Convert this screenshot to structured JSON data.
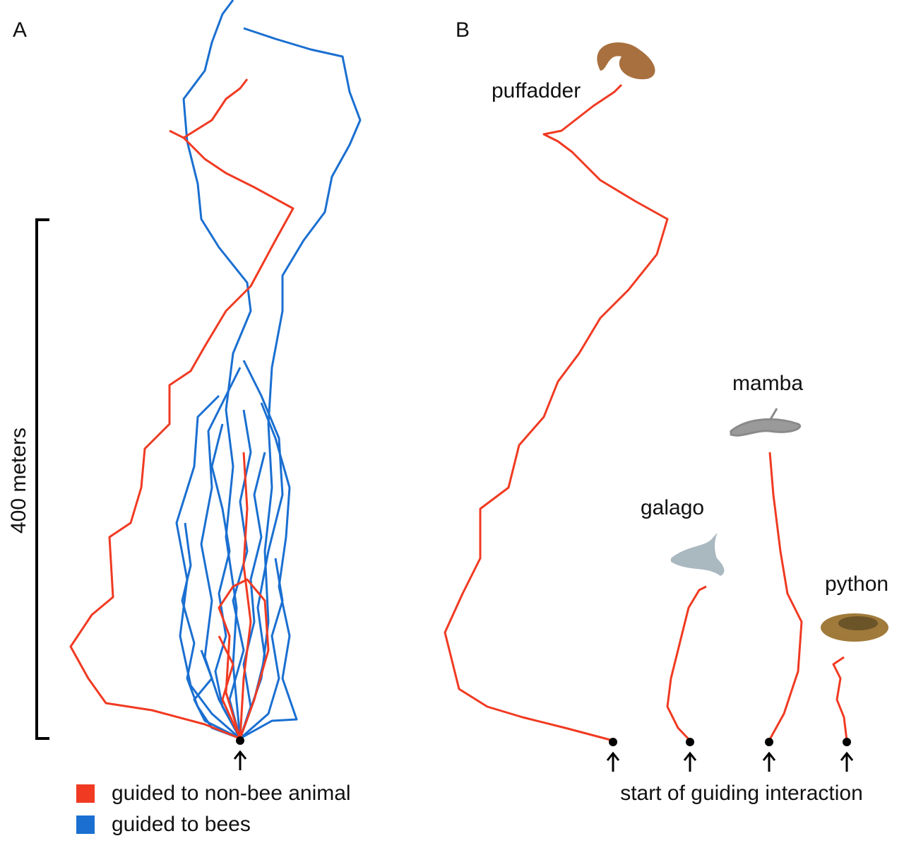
{
  "panels": [
    {
      "label": "A",
      "scale_label": "400 meters",
      "legend": [
        "guided to non-bee animal",
        "guided to bees"
      ]
    },
    {
      "label": "B",
      "animals": [
        "puffadder",
        "galago",
        "mamba",
        "python"
      ],
      "caption": "start of guiding interaction"
    }
  ]
}
